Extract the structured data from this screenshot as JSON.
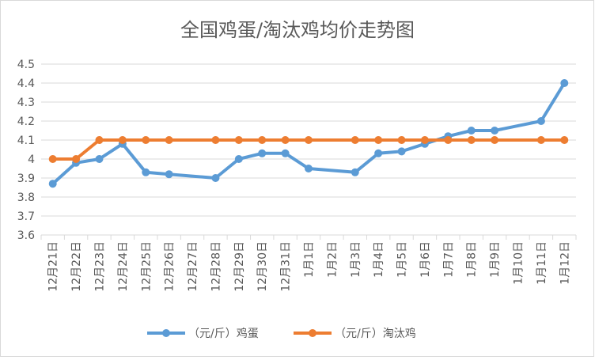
{
  "chart_data": {
    "type": "line",
    "title": "全国鸡蛋/淘汰鸡均价走势图",
    "xlabel": "",
    "ylabel": "",
    "ylim": [
      3.6,
      4.5
    ],
    "yticks": [
      "3.6",
      "3.7",
      "3.8",
      "3.9",
      "4",
      "4.1",
      "4.2",
      "4.3",
      "4.4",
      "4.5"
    ],
    "grid": true,
    "legend": "bottom",
    "categories": [
      "12月21日",
      "12月22日",
      "12月23日",
      "12月24日",
      "12月25日",
      "12月26日",
      "12月27日",
      "12月28日",
      "12月29日",
      "12月30日",
      "12月31日",
      "1月1日",
      "1月2日",
      "1月3日",
      "1月4日",
      "1月5日",
      "1月6日",
      "1月7日",
      "1月8日",
      "1月9日",
      "1月10日",
      "1月11日",
      "1月12日"
    ],
    "series": [
      {
        "name": "（元/斤）鸡蛋",
        "color": "#5b9bd5",
        "values": [
          3.87,
          3.98,
          4.0,
          4.08,
          3.93,
          3.92,
          null,
          3.9,
          4.0,
          4.03,
          4.03,
          3.95,
          null,
          3.93,
          4.03,
          4.04,
          4.08,
          4.12,
          4.15,
          4.15,
          null,
          4.2,
          4.4
        ]
      },
      {
        "name": "（元/斤）淘汰鸡",
        "color": "#ed7d31",
        "values": [
          4.0,
          4.0,
          4.1,
          4.1,
          4.1,
          4.1,
          null,
          4.1,
          4.1,
          4.1,
          4.1,
          4.1,
          null,
          4.1,
          4.1,
          4.1,
          4.1,
          4.1,
          4.1,
          4.1,
          null,
          4.1,
          4.1
        ]
      }
    ]
  }
}
